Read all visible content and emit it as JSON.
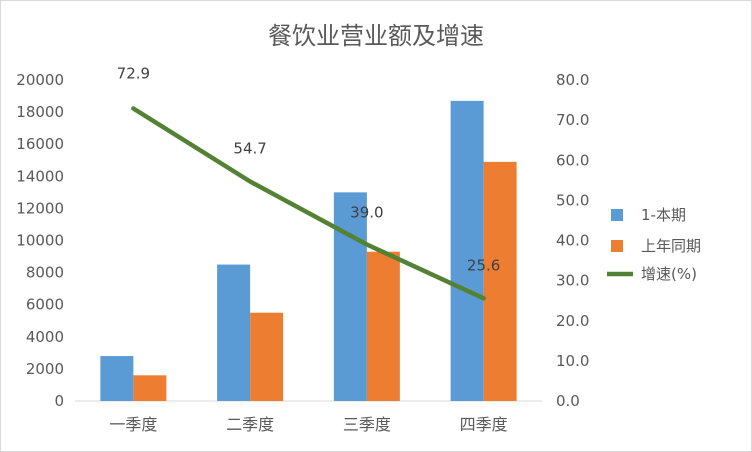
{
  "chart_data": {
    "type": "bar",
    "title": "餐饮业营业额及增速",
    "categories": [
      "一季度",
      "二季度",
      "三季度",
      "四季度"
    ],
    "series": [
      {
        "name": "1-本期",
        "type": "bar",
        "axis": "left",
        "color": "#5b9bd5",
        "values": [
          2800,
          8500,
          13000,
          18700
        ]
      },
      {
        "name": "上年同期",
        "type": "bar",
        "axis": "left",
        "color": "#ed7d31",
        "values": [
          1600,
          5500,
          9300,
          14900
        ]
      },
      {
        "name": "增速(%)",
        "type": "line",
        "axis": "right",
        "color": "#548235",
        "values": [
          72.9,
          54.7,
          39.0,
          25.6
        ]
      }
    ],
    "data_labels": [
      "72.9",
      "54.7",
      "39.0",
      "25.6"
    ],
    "y_left": {
      "min": 0,
      "max": 20000,
      "step": 2000,
      "ticks": [
        "0",
        "2000",
        "4000",
        "6000",
        "8000",
        "10000",
        "12000",
        "14000",
        "16000",
        "18000",
        "20000"
      ]
    },
    "y_right": {
      "min": 0,
      "max": 80,
      "step": 10,
      "ticks": [
        "0.0",
        "10.0",
        "20.0",
        "30.0",
        "40.0",
        "50.0",
        "60.0",
        "70.0",
        "80.0"
      ]
    },
    "grid": false,
    "legend_position": "right"
  }
}
